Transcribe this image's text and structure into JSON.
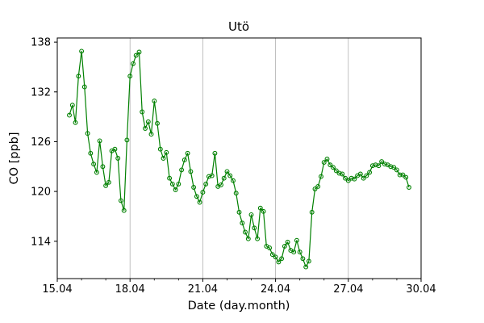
{
  "window": {
    "kind": "matplotlib-figure",
    "background": "#ffffff"
  },
  "chart_data": {
    "type": "line",
    "title": "Utö",
    "xlabel": "Date (day.month)",
    "ylabel": "CO [ppb]",
    "legend": null,
    "line_color": "#008000",
    "grid_color": "#b0b0b0",
    "marker": "open-circle",
    "xlim": [
      15,
      30
    ],
    "ylim": [
      109.5,
      138.5
    ],
    "x_tick_values": [
      15,
      18,
      21,
      24,
      27,
      30
    ],
    "x_tick_labels": [
      "15.04",
      "18.04",
      "21.04",
      "24.04",
      "27.04",
      "30.04"
    ],
    "x_minor_ticks": [
      16,
      17,
      19,
      20,
      22,
      23,
      25,
      26,
      28,
      29
    ],
    "grid_x_values": [
      18,
      21,
      24,
      27
    ],
    "y_tick_values": [
      114,
      120,
      126,
      132,
      138
    ],
    "y_tick_labels": [
      "114",
      "120",
      "126",
      "132",
      "138"
    ],
    "x": [
      15.5,
      15.625,
      15.75,
      15.875,
      16.0,
      16.125,
      16.25,
      16.375,
      16.5,
      16.625,
      16.75,
      16.875,
      17.0,
      17.125,
      17.25,
      17.375,
      17.5,
      17.625,
      17.75,
      17.875,
      18.0,
      18.125,
      18.25,
      18.375,
      18.5,
      18.625,
      18.75,
      18.875,
      19.0,
      19.125,
      19.25,
      19.375,
      19.5,
      19.625,
      19.75,
      19.875,
      20.0,
      20.125,
      20.25,
      20.375,
      20.5,
      20.625,
      20.75,
      20.875,
      21.0,
      21.125,
      21.25,
      21.375,
      21.5,
      21.625,
      21.75,
      21.875,
      22.0,
      22.125,
      22.25,
      22.375,
      22.5,
      22.625,
      22.75,
      22.875,
      23.0,
      23.125,
      23.25,
      23.375,
      23.5,
      23.625,
      23.75,
      23.875,
      24.0,
      24.125,
      24.25,
      24.375,
      24.5,
      24.625,
      24.75,
      24.875,
      25.0,
      25.125,
      25.25,
      25.375,
      25.5,
      25.625,
      25.75,
      25.875,
      26.0,
      26.125,
      26.25,
      26.375,
      26.5,
      26.625,
      26.75,
      26.875,
      27.0,
      27.125,
      27.25,
      27.375,
      27.5,
      27.625,
      27.75,
      27.875,
      28.0,
      28.125,
      28.25,
      28.375,
      28.5,
      28.625,
      28.75,
      28.875,
      29.0,
      29.125,
      29.25,
      29.375,
      29.5
    ],
    "y": [
      129.2,
      130.4,
      128.3,
      133.9,
      136.9,
      132.6,
      127.0,
      124.6,
      123.3,
      122.3,
      126.1,
      123.0,
      120.7,
      121.1,
      124.9,
      125.1,
      124.0,
      118.9,
      117.7,
      126.2,
      133.9,
      135.4,
      136.4,
      136.8,
      129.6,
      127.6,
      128.4,
      126.9,
      130.9,
      128.2,
      125.1,
      124.0,
      124.7,
      121.6,
      120.9,
      120.2,
      120.9,
      122.6,
      123.8,
      124.6,
      122.4,
      120.5,
      119.4,
      118.7,
      119.9,
      120.9,
      121.8,
      121.9,
      124.6,
      120.6,
      120.8,
      121.6,
      122.4,
      121.9,
      121.3,
      119.8,
      117.5,
      116.2,
      115.1,
      114.3,
      117.2,
      115.6,
      114.3,
      118.0,
      117.6,
      113.4,
      113.2,
      112.4,
      112.1,
      111.5,
      111.9,
      113.4,
      113.9,
      112.9,
      112.7,
      114.1,
      112.7,
      111.9,
      110.9,
      111.6,
      117.5,
      120.3,
      120.6,
      121.8,
      123.5,
      123.9,
      123.2,
      122.9,
      122.5,
      122.2,
      122.1,
      121.6,
      121.3,
      121.6,
      121.5,
      121.9,
      122.1,
      121.6,
      121.9,
      122.3,
      123.1,
      123.2,
      123.1,
      123.6,
      123.3,
      123.2,
      123.0,
      122.9,
      122.6,
      122.0,
      122.0,
      121.7,
      120.5
    ]
  }
}
